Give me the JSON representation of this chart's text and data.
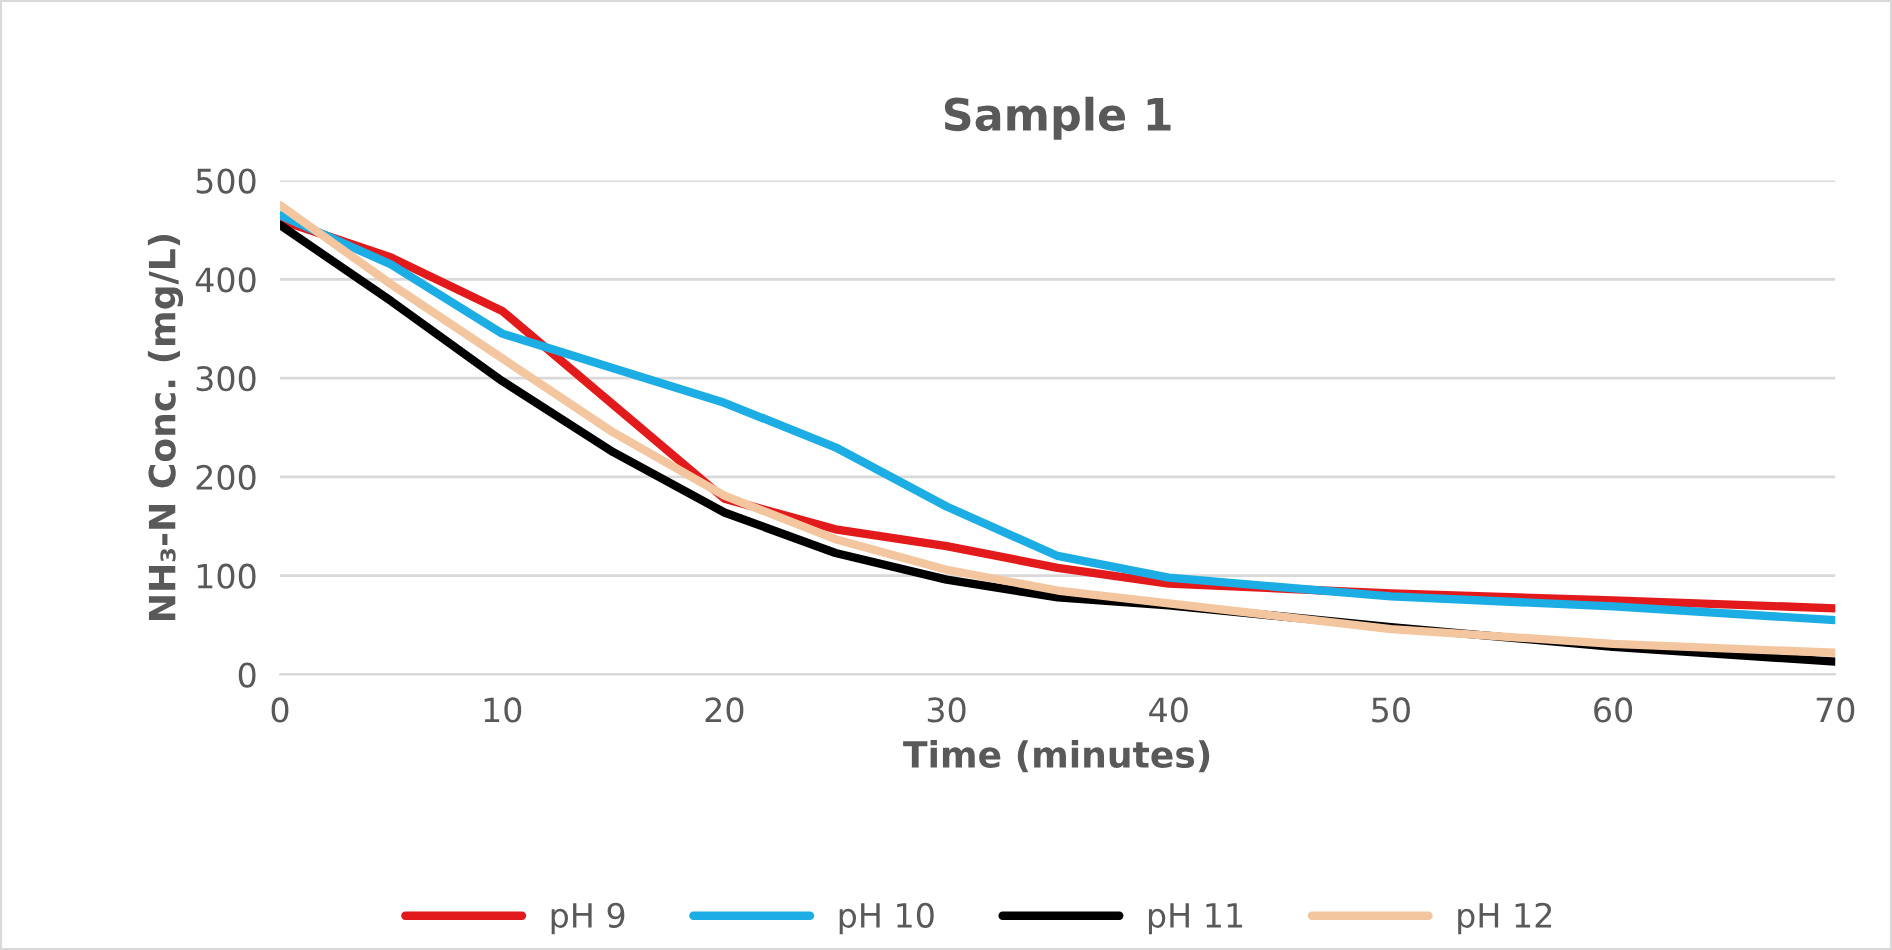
{
  "chart_data": {
    "type": "line",
    "title": "Sample 1",
    "xlabel": "Time (minutes)",
    "ylabel": "NH₃-N Conc. (mg/L)",
    "x": [
      0,
      5,
      10,
      15,
      20,
      25,
      30,
      35,
      40,
      50,
      60,
      70
    ],
    "series": [
      {
        "name": "pH 9",
        "color": "#e31a1c",
        "values": [
          460,
          422,
          368,
          273,
          178,
          147,
          130,
          108,
          92,
          82,
          75,
          67
        ]
      },
      {
        "name": "pH 10",
        "color": "#1cadE4",
        "values": [
          465,
          415,
          345,
          310,
          275,
          230,
          170,
          120,
          98,
          79,
          69,
          55
        ]
      },
      {
        "name": "pH 11",
        "color": "#000000",
        "values": [
          455,
          378,
          297,
          225,
          164,
          123,
          96,
          78,
          70,
          48,
          28,
          13
        ]
      },
      {
        "name": "pH 12",
        "color": "#f4c6a0",
        "values": [
          475,
          395,
          320,
          245,
          181,
          137,
          106,
          85,
          72,
          46,
          31,
          22
        ]
      }
    ],
    "xlim": [
      0,
      70
    ],
    "xticks": [
      0,
      10,
      20,
      30,
      40,
      50,
      60,
      70
    ],
    "ylim": [
      0,
      500
    ],
    "yticks": [
      0,
      100,
      200,
      300,
      400,
      500
    ],
    "grid": "y",
    "legend": "bottom",
    "marker": "none",
    "line_style": "solid"
  }
}
